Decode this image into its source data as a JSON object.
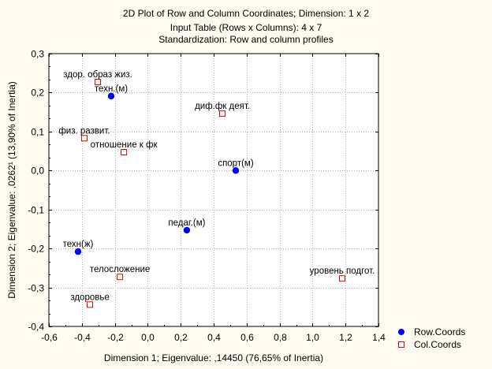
{
  "chart_data": {
    "type": "scatter",
    "title": "2D Plot of Row and Column Coordinates; Dimension:  1 x  2",
    "subtitle": [
      "Input Table (Rows x Columns): 4 x 7",
      "Standardization: Row and column profiles"
    ],
    "xlabel": "Dimension 1; Eigenvalue: ,14450 (76,65% of Inertia)",
    "ylabel": "Dimension 2; Eigenvalue: ,0262¹ (13,90% of Inertia)",
    "xlim": [
      -0.6,
      1.4
    ],
    "ylim": [
      -0.4,
      0.3
    ],
    "xticks": [
      -0.6,
      -0.4,
      -0.2,
      0.0,
      0.2,
      0.4,
      0.6,
      0.8,
      1.0,
      1.2,
      1.4
    ],
    "xtick_labels": [
      "-0,6",
      "-0,4",
      "-0,2",
      "0,0",
      "0,2",
      "0,4",
      "0,6",
      "0,8",
      "1,0",
      "1,2",
      "1,4"
    ],
    "yticks": [
      0.3,
      0.2,
      0.1,
      0.0,
      -0.1,
      -0.2,
      -0.3,
      -0.4
    ],
    "ytick_labels": [
      "0,3",
      "0,2",
      "0,1",
      "0,0",
      "-0,1",
      "-0,2",
      "-0,3",
      "-0,4"
    ],
    "grid": true,
    "legend_position": "bottom-right",
    "series": [
      {
        "name": "Row.Coords",
        "marker": "filled-circle",
        "color": "#0000ff",
        "points": [
          {
            "label": "техн.(м)",
            "x": -0.222,
            "y": 0.191
          },
          {
            "label": "спорт(м)",
            "x": 0.534,
            "y": 0.0
          },
          {
            "label": "педаг.(м)",
            "x": 0.237,
            "y": -0.153
          },
          {
            "label": "техн(ж)",
            "x": -0.423,
            "y": -0.208
          }
        ]
      },
      {
        "name": "Col.Coords",
        "marker": "open-square",
        "color": "#e00000",
        "points": [
          {
            "label": "здор. образ жиз.",
            "x": -0.303,
            "y": 0.227
          },
          {
            "label": "диф.фк деят.",
            "x": 0.453,
            "y": 0.146
          },
          {
            "label": "физ. развит.",
            "x": -0.385,
            "y": 0.083
          },
          {
            "label": "отношение к фк",
            "x": -0.145,
            "y": 0.047
          },
          {
            "label": "телосложение",
            "x": -0.169,
            "y": -0.273
          },
          {
            "label": "здоровье",
            "x": -0.351,
            "y": -0.344
          },
          {
            "label": "уровень подгот.",
            "x": 1.18,
            "y": -0.277
          }
        ]
      }
    ]
  }
}
